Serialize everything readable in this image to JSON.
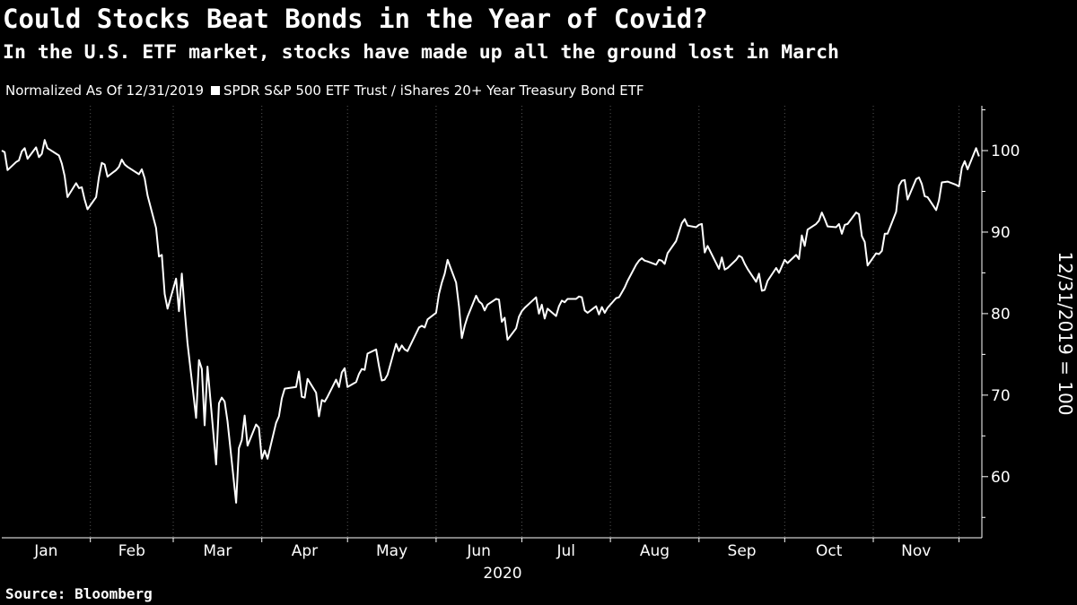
{
  "header": {
    "title": "Could Stocks Beat Bonds in the Year of Covid?",
    "subtitle": "In the U.S. ETF market, stocks have made up all the ground lost in March"
  },
  "legend": {
    "note": "Normalized As Of 12/31/2019",
    "series_label": "SPDR S&P 500 ETF Trust / iShares 20+ Year Treasury Bond ETF"
  },
  "footer": {
    "source": "Source: Bloomberg"
  },
  "colors": {
    "background": "#000000",
    "line": "#ffffff",
    "grid": "#555555"
  },
  "chart_data": {
    "type": "line",
    "title": "Could Stocks Beat Bonds in the Year of Covid?",
    "subtitle": "In the U.S. ETF market, stocks have made up all the ground lost in March",
    "ylabel": "12/31/2019 = 100",
    "xlabel": "2020",
    "x_tick_labels": [
      "Jan",
      "Feb",
      "Mar",
      "Apr",
      "May",
      "Jun",
      "Jul",
      "Aug",
      "Sep",
      "Oct",
      "Nov"
    ],
    "y_ticks": [
      60,
      70,
      80,
      90,
      100
    ],
    "ylim": [
      52.5,
      105.5
    ],
    "xlim": [
      "2020-01-01",
      "2020-12-09"
    ],
    "grid": "vertical",
    "legend_position": "top-left",
    "series": [
      {
        "name": "SPDR S&P 500 ETF Trust / iShares 20+ Year Treasury Bond ETF",
        "points": [
          [
            "2020-01-01",
            100.0
          ],
          [
            "2020-01-02",
            99.8
          ],
          [
            "2020-01-03",
            97.6
          ],
          [
            "2020-01-06",
            98.6
          ],
          [
            "2020-01-07",
            98.8
          ],
          [
            "2020-01-08",
            99.9
          ],
          [
            "2020-01-09",
            100.3
          ],
          [
            "2020-01-10",
            99.0
          ],
          [
            "2020-01-13",
            100.4
          ],
          [
            "2020-01-14",
            99.2
          ],
          [
            "2020-01-15",
            99.6
          ],
          [
            "2020-01-16",
            101.3
          ],
          [
            "2020-01-17",
            100.3
          ],
          [
            "2020-01-21",
            99.4
          ],
          [
            "2020-01-22",
            98.4
          ],
          [
            "2020-01-23",
            96.9
          ],
          [
            "2020-01-24",
            94.3
          ],
          [
            "2020-01-27",
            96.0
          ],
          [
            "2020-01-28",
            95.4
          ],
          [
            "2020-01-29",
            95.5
          ],
          [
            "2020-01-30",
            94.0
          ],
          [
            "2020-01-31",
            92.8
          ],
          [
            "2020-02-03",
            94.3
          ],
          [
            "2020-02-04",
            96.7
          ],
          [
            "2020-02-05",
            98.5
          ],
          [
            "2020-02-06",
            98.3
          ],
          [
            "2020-02-07",
            96.8
          ],
          [
            "2020-02-10",
            97.6
          ],
          [
            "2020-02-11",
            98.0
          ],
          [
            "2020-02-12",
            98.9
          ],
          [
            "2020-02-13",
            98.3
          ],
          [
            "2020-02-14",
            98.0
          ],
          [
            "2020-02-18",
            97.1
          ],
          [
            "2020-02-19",
            97.7
          ],
          [
            "2020-02-20",
            96.6
          ],
          [
            "2020-02-21",
            94.5
          ],
          [
            "2020-02-24",
            90.5
          ],
          [
            "2020-02-25",
            87.0
          ],
          [
            "2020-02-26",
            87.2
          ],
          [
            "2020-02-27",
            82.4
          ],
          [
            "2020-02-28",
            80.6
          ],
          [
            "2020-03-02",
            84.3
          ],
          [
            "2020-03-03",
            80.3
          ],
          [
            "2020-03-04",
            84.9
          ],
          [
            "2020-03-05",
            80.4
          ],
          [
            "2020-03-06",
            76.4
          ],
          [
            "2020-03-09",
            67.2
          ],
          [
            "2020-03-10",
            74.3
          ],
          [
            "2020-03-11",
            73.2
          ],
          [
            "2020-03-12",
            66.3
          ],
          [
            "2020-03-13",
            73.5
          ],
          [
            "2020-03-16",
            61.5
          ],
          [
            "2020-03-17",
            69.0
          ],
          [
            "2020-03-18",
            69.7
          ],
          [
            "2020-03-19",
            69.2
          ],
          [
            "2020-03-20",
            66.8
          ],
          [
            "2020-03-23",
            56.8
          ],
          [
            "2020-03-24",
            63.5
          ],
          [
            "2020-03-25",
            64.5
          ],
          [
            "2020-03-26",
            67.5
          ],
          [
            "2020-03-27",
            63.8
          ],
          [
            "2020-03-30",
            66.4
          ],
          [
            "2020-03-31",
            66.0
          ],
          [
            "2020-04-01",
            62.2
          ],
          [
            "2020-04-02",
            63.2
          ],
          [
            "2020-04-03",
            62.2
          ],
          [
            "2020-04-06",
            66.6
          ],
          [
            "2020-04-07",
            67.4
          ],
          [
            "2020-04-08",
            69.6
          ],
          [
            "2020-04-09",
            70.8
          ],
          [
            "2020-04-13",
            71.0
          ],
          [
            "2020-04-14",
            72.9
          ],
          [
            "2020-04-15",
            69.8
          ],
          [
            "2020-04-16",
            69.7
          ],
          [
            "2020-04-17",
            72.0
          ],
          [
            "2020-04-20",
            70.3
          ],
          [
            "2020-04-21",
            67.4
          ],
          [
            "2020-04-22",
            69.4
          ],
          [
            "2020-04-23",
            69.2
          ],
          [
            "2020-04-24",
            69.8
          ],
          [
            "2020-04-27",
            71.9
          ],
          [
            "2020-04-28",
            71.0
          ],
          [
            "2020-04-29",
            72.8
          ],
          [
            "2020-04-30",
            73.3
          ],
          [
            "2020-05-01",
            71.0
          ],
          [
            "2020-05-04",
            71.6
          ],
          [
            "2020-05-05",
            72.6
          ],
          [
            "2020-05-06",
            73.2
          ],
          [
            "2020-05-07",
            73.1
          ],
          [
            "2020-05-08",
            75.1
          ],
          [
            "2020-05-11",
            75.6
          ],
          [
            "2020-05-12",
            73.6
          ],
          [
            "2020-05-13",
            71.8
          ],
          [
            "2020-05-14",
            71.9
          ],
          [
            "2020-05-15",
            72.5
          ],
          [
            "2020-05-18",
            76.3
          ],
          [
            "2020-05-19",
            75.4
          ],
          [
            "2020-05-20",
            76.1
          ],
          [
            "2020-05-21",
            75.6
          ],
          [
            "2020-05-22",
            75.4
          ],
          [
            "2020-05-26",
            78.3
          ],
          [
            "2020-05-27",
            78.5
          ],
          [
            "2020-05-28",
            78.3
          ],
          [
            "2020-05-29",
            79.3
          ],
          [
            "2020-06-01",
            80.1
          ],
          [
            "2020-06-02",
            82.4
          ],
          [
            "2020-06-03",
            83.8
          ],
          [
            "2020-06-04",
            84.9
          ],
          [
            "2020-06-05",
            86.6
          ],
          [
            "2020-06-08",
            83.8
          ],
          [
            "2020-06-09",
            80.9
          ],
          [
            "2020-06-10",
            77.0
          ],
          [
            "2020-06-11",
            78.5
          ],
          [
            "2020-06-12",
            79.6
          ],
          [
            "2020-06-15",
            82.2
          ],
          [
            "2020-06-16",
            81.5
          ],
          [
            "2020-06-17",
            81.2
          ],
          [
            "2020-06-18",
            80.4
          ],
          [
            "2020-06-19",
            81.1
          ],
          [
            "2020-06-22",
            81.8
          ],
          [
            "2020-06-23",
            81.7
          ],
          [
            "2020-06-24",
            79.0
          ],
          [
            "2020-06-25",
            79.5
          ],
          [
            "2020-06-26",
            76.8
          ],
          [
            "2020-06-29",
            78.2
          ],
          [
            "2020-06-30",
            79.6
          ],
          [
            "2020-07-01",
            80.3
          ],
          [
            "2020-07-02",
            80.7
          ],
          [
            "2020-07-06",
            82.0
          ],
          [
            "2020-07-07",
            80.0
          ],
          [
            "2020-07-08",
            81.1
          ],
          [
            "2020-07-09",
            79.4
          ],
          [
            "2020-07-10",
            80.6
          ],
          [
            "2020-07-13",
            79.7
          ],
          [
            "2020-07-14",
            80.9
          ],
          [
            "2020-07-15",
            81.6
          ],
          [
            "2020-07-16",
            81.4
          ],
          [
            "2020-07-17",
            81.8
          ],
          [
            "2020-07-20",
            81.8
          ],
          [
            "2020-07-21",
            82.1
          ],
          [
            "2020-07-22",
            82.0
          ],
          [
            "2020-07-23",
            80.4
          ],
          [
            "2020-07-24",
            80.1
          ],
          [
            "2020-07-27",
            80.9
          ],
          [
            "2020-07-28",
            79.9
          ],
          [
            "2020-07-29",
            80.8
          ],
          [
            "2020-07-30",
            80.1
          ],
          [
            "2020-07-31",
            80.7
          ],
          [
            "2020-08-03",
            81.9
          ],
          [
            "2020-08-04",
            82.0
          ],
          [
            "2020-08-05",
            82.6
          ],
          [
            "2020-08-06",
            83.2
          ],
          [
            "2020-08-07",
            84.0
          ],
          [
            "2020-08-10",
            86.0
          ],
          [
            "2020-08-11",
            86.5
          ],
          [
            "2020-08-12",
            86.8
          ],
          [
            "2020-08-13",
            86.5
          ],
          [
            "2020-08-14",
            86.4
          ],
          [
            "2020-08-17",
            86.0
          ],
          [
            "2020-08-18",
            86.6
          ],
          [
            "2020-08-19",
            86.5
          ],
          [
            "2020-08-20",
            86.1
          ],
          [
            "2020-08-21",
            87.4
          ],
          [
            "2020-08-24",
            88.9
          ],
          [
            "2020-08-25",
            90.0
          ],
          [
            "2020-08-26",
            91.1
          ],
          [
            "2020-08-27",
            91.6
          ],
          [
            "2020-08-28",
            90.8
          ],
          [
            "2020-08-31",
            90.6
          ],
          [
            "2020-09-01",
            90.9
          ],
          [
            "2020-09-02",
            91.0
          ],
          [
            "2020-09-03",
            87.5
          ],
          [
            "2020-09-04",
            88.3
          ],
          [
            "2020-09-08",
            85.5
          ],
          [
            "2020-09-09",
            86.9
          ],
          [
            "2020-09-10",
            85.4
          ],
          [
            "2020-09-11",
            85.6
          ],
          [
            "2020-09-14",
            86.6
          ],
          [
            "2020-09-15",
            87.1
          ],
          [
            "2020-09-16",
            86.9
          ],
          [
            "2020-09-17",
            86.1
          ],
          [
            "2020-09-18",
            85.5
          ],
          [
            "2020-09-21",
            83.9
          ],
          [
            "2020-09-22",
            84.9
          ],
          [
            "2020-09-23",
            82.8
          ],
          [
            "2020-09-24",
            82.9
          ],
          [
            "2020-09-25",
            84.0
          ],
          [
            "2020-09-28",
            85.6
          ],
          [
            "2020-09-29",
            85.0
          ],
          [
            "2020-09-30",
            85.8
          ],
          [
            "2020-10-01",
            86.6
          ],
          [
            "2020-10-02",
            86.2
          ],
          [
            "2020-10-05",
            87.2
          ],
          [
            "2020-10-06",
            86.7
          ],
          [
            "2020-10-07",
            89.6
          ],
          [
            "2020-10-08",
            88.3
          ],
          [
            "2020-10-09",
            90.3
          ],
          [
            "2020-10-12",
            91.0
          ],
          [
            "2020-10-13",
            91.4
          ],
          [
            "2020-10-14",
            92.4
          ],
          [
            "2020-10-15",
            91.6
          ],
          [
            "2020-10-16",
            90.7
          ],
          [
            "2020-10-19",
            90.6
          ],
          [
            "2020-10-20",
            91.0
          ],
          [
            "2020-10-21",
            89.8
          ],
          [
            "2020-10-22",
            90.9
          ],
          [
            "2020-10-23",
            91.0
          ],
          [
            "2020-10-26",
            92.4
          ],
          [
            "2020-10-27",
            92.2
          ],
          [
            "2020-10-28",
            89.5
          ],
          [
            "2020-10-29",
            88.8
          ],
          [
            "2020-10-30",
            85.9
          ],
          [
            "2020-11-02",
            87.4
          ],
          [
            "2020-11-03",
            87.3
          ],
          [
            "2020-11-04",
            87.7
          ],
          [
            "2020-11-05",
            89.8
          ],
          [
            "2020-11-06",
            89.8
          ],
          [
            "2020-11-09",
            92.5
          ],
          [
            "2020-11-10",
            95.7
          ],
          [
            "2020-11-11",
            96.3
          ],
          [
            "2020-11-12",
            96.4
          ],
          [
            "2020-11-13",
            94.0
          ],
          [
            "2020-11-16",
            96.5
          ],
          [
            "2020-11-17",
            96.7
          ],
          [
            "2020-11-18",
            95.9
          ],
          [
            "2020-11-19",
            94.4
          ],
          [
            "2020-11-20",
            94.3
          ],
          [
            "2020-11-23",
            92.7
          ],
          [
            "2020-11-24",
            93.9
          ],
          [
            "2020-11-25",
            96.1
          ],
          [
            "2020-11-27",
            96.2
          ],
          [
            "2020-11-30",
            95.8
          ],
          [
            "2020-12-01",
            95.6
          ],
          [
            "2020-12-02",
            97.9
          ],
          [
            "2020-12-03",
            98.7
          ],
          [
            "2020-12-04",
            97.7
          ],
          [
            "2020-12-07",
            100.3
          ],
          [
            "2020-12-08",
            99.3
          ]
        ]
      }
    ]
  }
}
